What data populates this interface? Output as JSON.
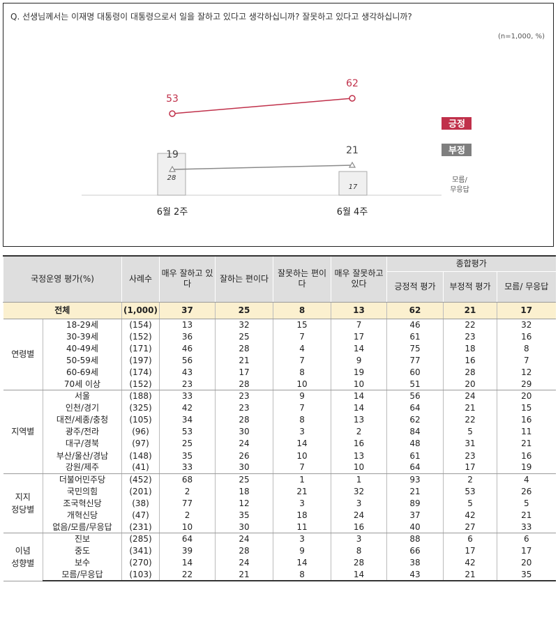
{
  "question": "Q. 선생님께서는 이재명 대통령이 대통령으로서 일을 잘하고 있다고 생각하십니까? 잘못하고 있다고 생각하십니까?",
  "sample_note": "(n=1,000,  %)",
  "chart_data": {
    "type": "line",
    "categories": [
      "6월 2주",
      "6월 4주"
    ],
    "series": [
      {
        "name": "긍정",
        "values": [
          53,
          62
        ],
        "color": "#c0304a",
        "marker": "circle"
      },
      {
        "name": "부정",
        "values": [
          19,
          21
        ],
        "color": "#8a8a8a",
        "marker": "triangle"
      }
    ],
    "bars": {
      "name": "모름/무응답",
      "values": [
        28,
        17
      ],
      "color": "#f0f0f0"
    },
    "legend": [
      "긍정",
      "부정",
      "모름/무응답"
    ],
    "legend_position": "right",
    "legend_colors": {
      "긍정": "#c0304a",
      "부정": "#7f7f7f"
    },
    "grid": false
  },
  "table": {
    "headers": {
      "col0": "국정운영 평가(%)",
      "col1": "사례수",
      "col2": "매우 잘하고 있다",
      "col3": "잘하는 편이다",
      "col4": "잘못하는 편이다",
      "col5": "매우 잘못하고 있다",
      "summary": "종합평가",
      "col6": "긍정적 평가",
      "col7": "부정적 평가",
      "col8": "모름/ 무응답"
    },
    "total": [
      "전체",
      "(1,000)",
      "37",
      "25",
      "8",
      "13",
      "62",
      "21",
      "17"
    ],
    "groups": [
      {
        "name": "연령별",
        "rows": [
          [
            "18-29세",
            "(154)",
            "13",
            "32",
            "15",
            "7",
            "46",
            "22",
            "32"
          ],
          [
            "30-39세",
            "(152)",
            "36",
            "25",
            "7",
            "17",
            "61",
            "23",
            "16"
          ],
          [
            "40-49세",
            "(171)",
            "46",
            "28",
            "4",
            "14",
            "75",
            "18",
            "8"
          ],
          [
            "50-59세",
            "(197)",
            "56",
            "21",
            "7",
            "9",
            "77",
            "16",
            "7"
          ],
          [
            "60-69세",
            "(174)",
            "43",
            "17",
            "8",
            "19",
            "60",
            "28",
            "12"
          ],
          [
            "70세 이상",
            "(152)",
            "23",
            "28",
            "10",
            "10",
            "51",
            "20",
            "29"
          ]
        ]
      },
      {
        "name": "지역별",
        "rows": [
          [
            "서울",
            "(188)",
            "33",
            "23",
            "9",
            "14",
            "56",
            "24",
            "20"
          ],
          [
            "인천/경기",
            "(325)",
            "42",
            "23",
            "7",
            "14",
            "64",
            "21",
            "15"
          ],
          [
            "대전/세종/충청",
            "(105)",
            "34",
            "28",
            "8",
            "13",
            "62",
            "22",
            "16"
          ],
          [
            "광주/전라",
            "(96)",
            "53",
            "30",
            "3",
            "2",
            "84",
            "5",
            "11"
          ],
          [
            "대구/경북",
            "(97)",
            "25",
            "24",
            "14",
            "16",
            "48",
            "31",
            "21"
          ],
          [
            "부산/울산/경남",
            "(148)",
            "35",
            "26",
            "10",
            "13",
            "61",
            "23",
            "16"
          ],
          [
            "강원/제주",
            "(41)",
            "33",
            "30",
            "7",
            "10",
            "64",
            "17",
            "19"
          ]
        ]
      },
      {
        "name": "지지 정당별",
        "rows": [
          [
            "더불어민주당",
            "(452)",
            "68",
            "25",
            "1",
            "1",
            "93",
            "2",
            "4"
          ],
          [
            "국민의힘",
            "(201)",
            "2",
            "18",
            "21",
            "32",
            "21",
            "53",
            "26"
          ],
          [
            "조국혁신당",
            "(38)",
            "77",
            "12",
            "3",
            "3",
            "89",
            "5",
            "5"
          ],
          [
            "개혁신당",
            "(47)",
            "2",
            "35",
            "18",
            "24",
            "37",
            "42",
            "21"
          ],
          [
            "없음/모름/무응답",
            "(231)",
            "10",
            "30",
            "11",
            "16",
            "40",
            "27",
            "33"
          ]
        ]
      },
      {
        "name": "이념 성향별",
        "rows": [
          [
            "진보",
            "(285)",
            "64",
            "24",
            "3",
            "3",
            "88",
            "6",
            "6"
          ],
          [
            "중도",
            "(341)",
            "39",
            "28",
            "9",
            "8",
            "66",
            "17",
            "17"
          ],
          [
            "보수",
            "(270)",
            "14",
            "24",
            "14",
            "28",
            "38",
            "42",
            "20"
          ],
          [
            "모름/무응답",
            "(103)",
            "22",
            "21",
            "8",
            "14",
            "43",
            "21",
            "35"
          ]
        ]
      }
    ]
  }
}
